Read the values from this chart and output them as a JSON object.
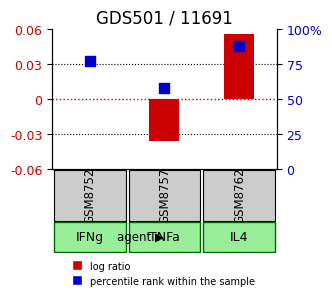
{
  "title": "GDS501 / 11691",
  "samples": [
    "GSM8752",
    "GSM8757",
    "GSM8762"
  ],
  "agents": [
    "IFNg",
    "TNFa",
    "IL4"
  ],
  "log_ratios": [
    0.0,
    -0.036,
    0.056
  ],
  "percentile_ranks": [
    0.77,
    0.58,
    0.88
  ],
  "ylim_left": [
    -0.06,
    0.06
  ],
  "ylim_right": [
    0,
    100
  ],
  "yticks_left": [
    -0.06,
    -0.03,
    0,
    0.03,
    0.06
  ],
  "yticks_right": [
    0,
    25,
    50,
    75,
    100
  ],
  "bar_color": "#cc0000",
  "dot_color": "#0000cc",
  "zero_line_color": "#cc0000",
  "grid_color": "#000000",
  "bg_plot": "#ffffff",
  "bg_gsm": "#cccccc",
  "bg_agent": "#99ee99",
  "agent_border": "#006600",
  "title_fontsize": 12,
  "tick_fontsize": 9,
  "bar_width": 0.4,
  "dot_size": 60
}
